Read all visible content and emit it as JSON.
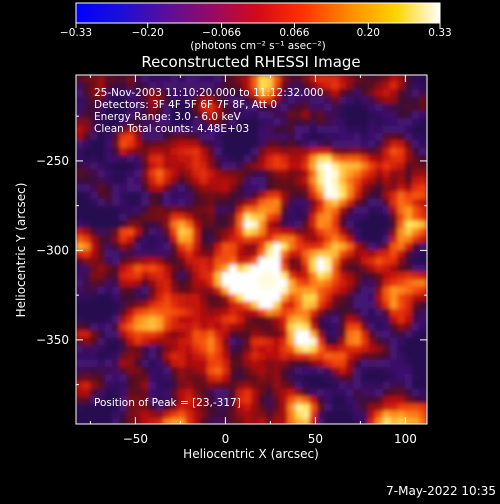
{
  "colorbar": {
    "ticks": [
      "-0.33",
      "-0.20",
      "-0.066",
      "0.066",
      "0.20",
      "0.33"
    ],
    "range": [
      -0.33,
      0.33
    ],
    "unit_label": "(photons cm⁻² s⁻¹ asec⁻²)"
  },
  "chart_data": {
    "type": "heatmap",
    "title": "Reconstructed RHESSI Image",
    "xlabel": "Heliocentric X (arcsec)",
    "ylabel": "Heliocentric Y (arcsec)",
    "xlim": [
      -83,
      112
    ],
    "ylim": [
      -397,
      -202
    ],
    "xticks": [
      -50,
      0,
      50,
      100
    ],
    "yticks": [
      -250,
      -300,
      -350
    ],
    "xtick_labels": [
      "−50",
      "0",
      "50",
      "100"
    ],
    "ytick_labels": [
      "−250",
      "−300",
      "−350"
    ],
    "colormap": "rainbow-like (blue → purple → red → orange → white)",
    "peak": [
      23,
      -317
    ],
    "info_lines": [
      "25-Nov-2003 11:10:20.000 to 11:12:32.000",
      "Detectors: 3F 4F 5F 6F 7F 8F, Att 0",
      "Energy Range: 3.0 - 6.0 keV",
      "Clean     Total counts: 4.48E+03"
    ],
    "peak_label": "Position of Peak = [23,-317]"
  },
  "timestamp": "7-May-2022 10:35"
}
